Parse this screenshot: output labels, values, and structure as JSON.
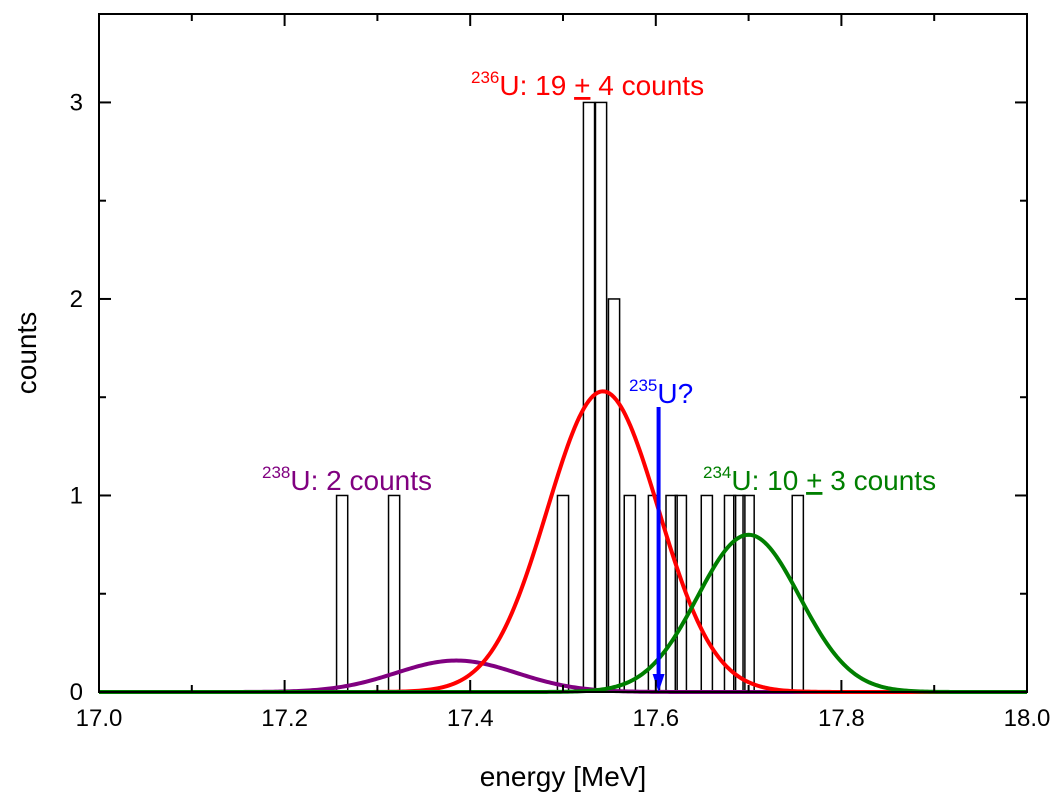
{
  "chart_data": {
    "type": "bar",
    "xlabel": "energy [MeV]",
    "ylabel": "counts",
    "xlim": [
      17.0,
      18.0
    ],
    "ylim": [
      0,
      3.45
    ],
    "x_ticks": [
      "17.0",
      "17.2",
      "17.4",
      "17.6",
      "17.8",
      "18.0"
    ],
    "y_ticks": [
      "0",
      "1",
      "2",
      "3"
    ],
    "grid": false,
    "histogram": {
      "bin_width_mev": 0.012,
      "bins": [
        {
          "x": 17.262,
          "count": 1
        },
        {
          "x": 17.318,
          "count": 1
        },
        {
          "x": 17.5,
          "count": 1
        },
        {
          "x": 17.528,
          "count": 3
        },
        {
          "x": 17.541,
          "count": 3
        },
        {
          "x": 17.555,
          "count": 2
        },
        {
          "x": 17.572,
          "count": 1
        },
        {
          "x": 17.598,
          "count": 1
        },
        {
          "x": 17.617,
          "count": 1
        },
        {
          "x": 17.627,
          "count": 1
        },
        {
          "x": 17.655,
          "count": 1
        },
        {
          "x": 17.68,
          "count": 1
        },
        {
          "x": 17.69,
          "count": 1
        },
        {
          "x": 17.7,
          "count": 1
        },
        {
          "x": 17.753,
          "count": 1
        }
      ]
    },
    "fits": [
      {
        "isotope": "238",
        "color": "#800080",
        "center": 17.385,
        "amplitude": 0.16,
        "sigma": 0.065
      },
      {
        "isotope": "236",
        "color": "#ff0000",
        "center": 17.543,
        "amplitude": 1.53,
        "sigma": 0.06
      },
      {
        "isotope": "234",
        "color": "#007f00",
        "center": 17.7,
        "amplitude": 0.8,
        "sigma": 0.055
      }
    ],
    "marker": {
      "x": 17.603,
      "color": "#0000ff",
      "from_y": 1.45,
      "to_y": 0
    }
  },
  "annotations": {
    "u236": {
      "mass": "236",
      "text": "U: 19 ",
      "pm": "+",
      "rest": " 4 counts",
      "color": "#ff0000"
    },
    "u235": {
      "mass": "235",
      "text": "U?",
      "color": "#0000ff"
    },
    "u238": {
      "mass": "238",
      "text": "U: 2 counts",
      "color": "#800080"
    },
    "u234": {
      "mass": "234",
      "text": "U: 10 ",
      "pm": "+",
      "rest": " 3 counts",
      "color": "#007f00"
    }
  }
}
